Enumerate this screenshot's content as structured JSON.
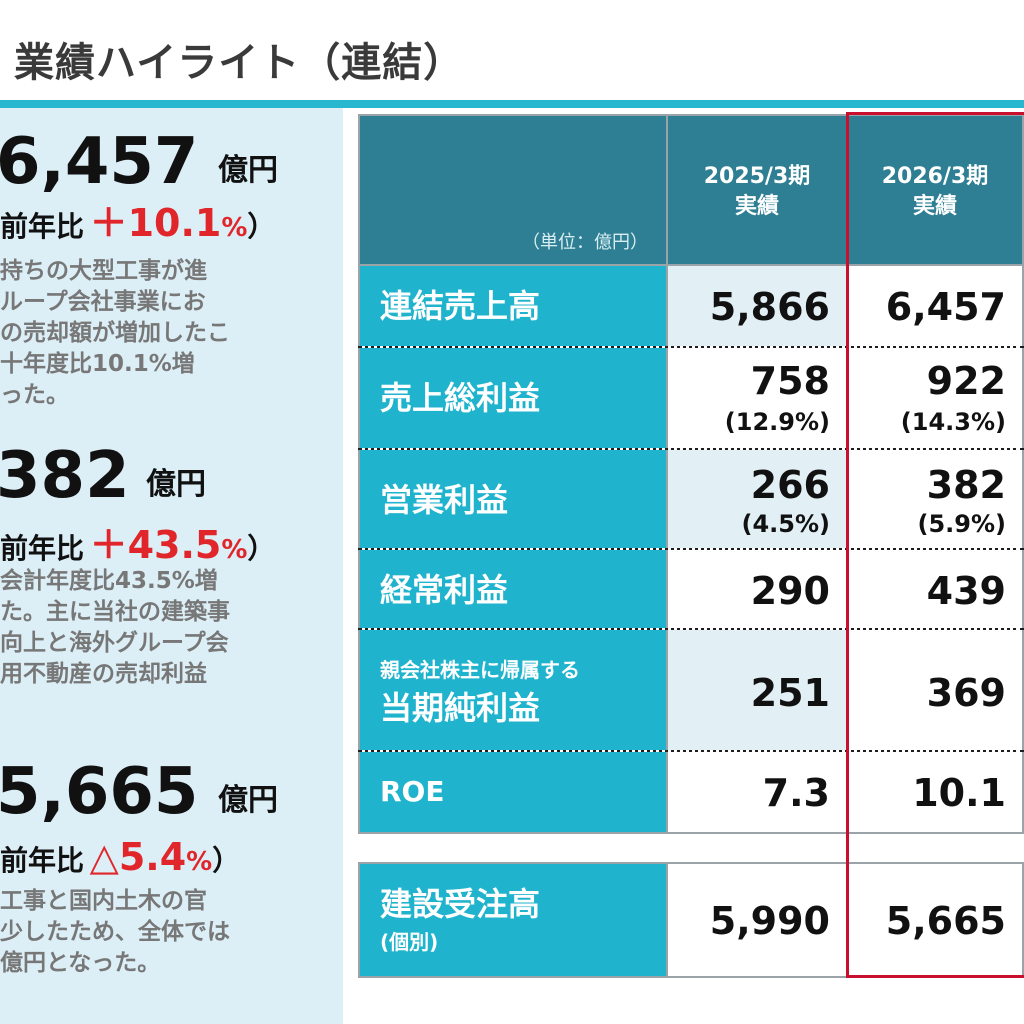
{
  "title": "業績ハイライト（連結）",
  "summary": {
    "sales": {
      "value": "6,457",
      "unit": "億円",
      "ratio_label": "前年比",
      "ratio_value": "＋10.1",
      "ratio_pct": "%",
      "ratio_close": "）",
      "desc": [
        "持ちの大型工事が進",
        "ループ会社事業にお",
        "の売却額が増加したこ",
        "十年度比10.1%増",
        "った。"
      ]
    },
    "op_income": {
      "value": "382",
      "unit": "億円",
      "ratio_label": "前年比",
      "ratio_value": "＋43.5",
      "ratio_pct": "%",
      "ratio_close": "）",
      "desc": [
        "会計年度比43.5%増",
        "た。主に当社の建築事",
        "向上と海外グループ会",
        "用不動産の売却利益"
      ]
    },
    "orders": {
      "value": "5,665",
      "unit": "億円",
      "ratio_label": "前年比",
      "ratio_value": "△5.4",
      "ratio_pct": "%",
      "ratio_close": "）",
      "desc": [
        "工事と国内土木の官",
        "少したため、全体では",
        "億円となった。"
      ]
    }
  },
  "table": {
    "unit_label": "（単位：億円）",
    "col1": [
      "2025/3期",
      "実績"
    ],
    "col2": [
      "2026/3期",
      "実績"
    ],
    "rows": {
      "sales": {
        "label": "連結売上高",
        "v1": "5,866",
        "v2": "6,457"
      },
      "gross": {
        "label": "売上総利益",
        "v1": "758",
        "p1": "(12.9%)",
        "v2": "922",
        "p2": "(14.3%)"
      },
      "op": {
        "label": "営業利益",
        "v1": "266",
        "p1": "(4.5%)",
        "v2": "382",
        "p2": "(5.9%)"
      },
      "ord": {
        "label": "経常利益",
        "v1": "290",
        "v2": "439"
      },
      "net": {
        "sub": "親会社株主に帰属する",
        "label": "当期純利益",
        "v1": "251",
        "v2": "369"
      },
      "roe": {
        "label": "ROE",
        "v1": "7.3",
        "v2": "10.1"
      },
      "orders": {
        "label": "建設受注高",
        "sub": "(個別)",
        "v1": "5,990",
        "v2": "5,665"
      }
    }
  }
}
